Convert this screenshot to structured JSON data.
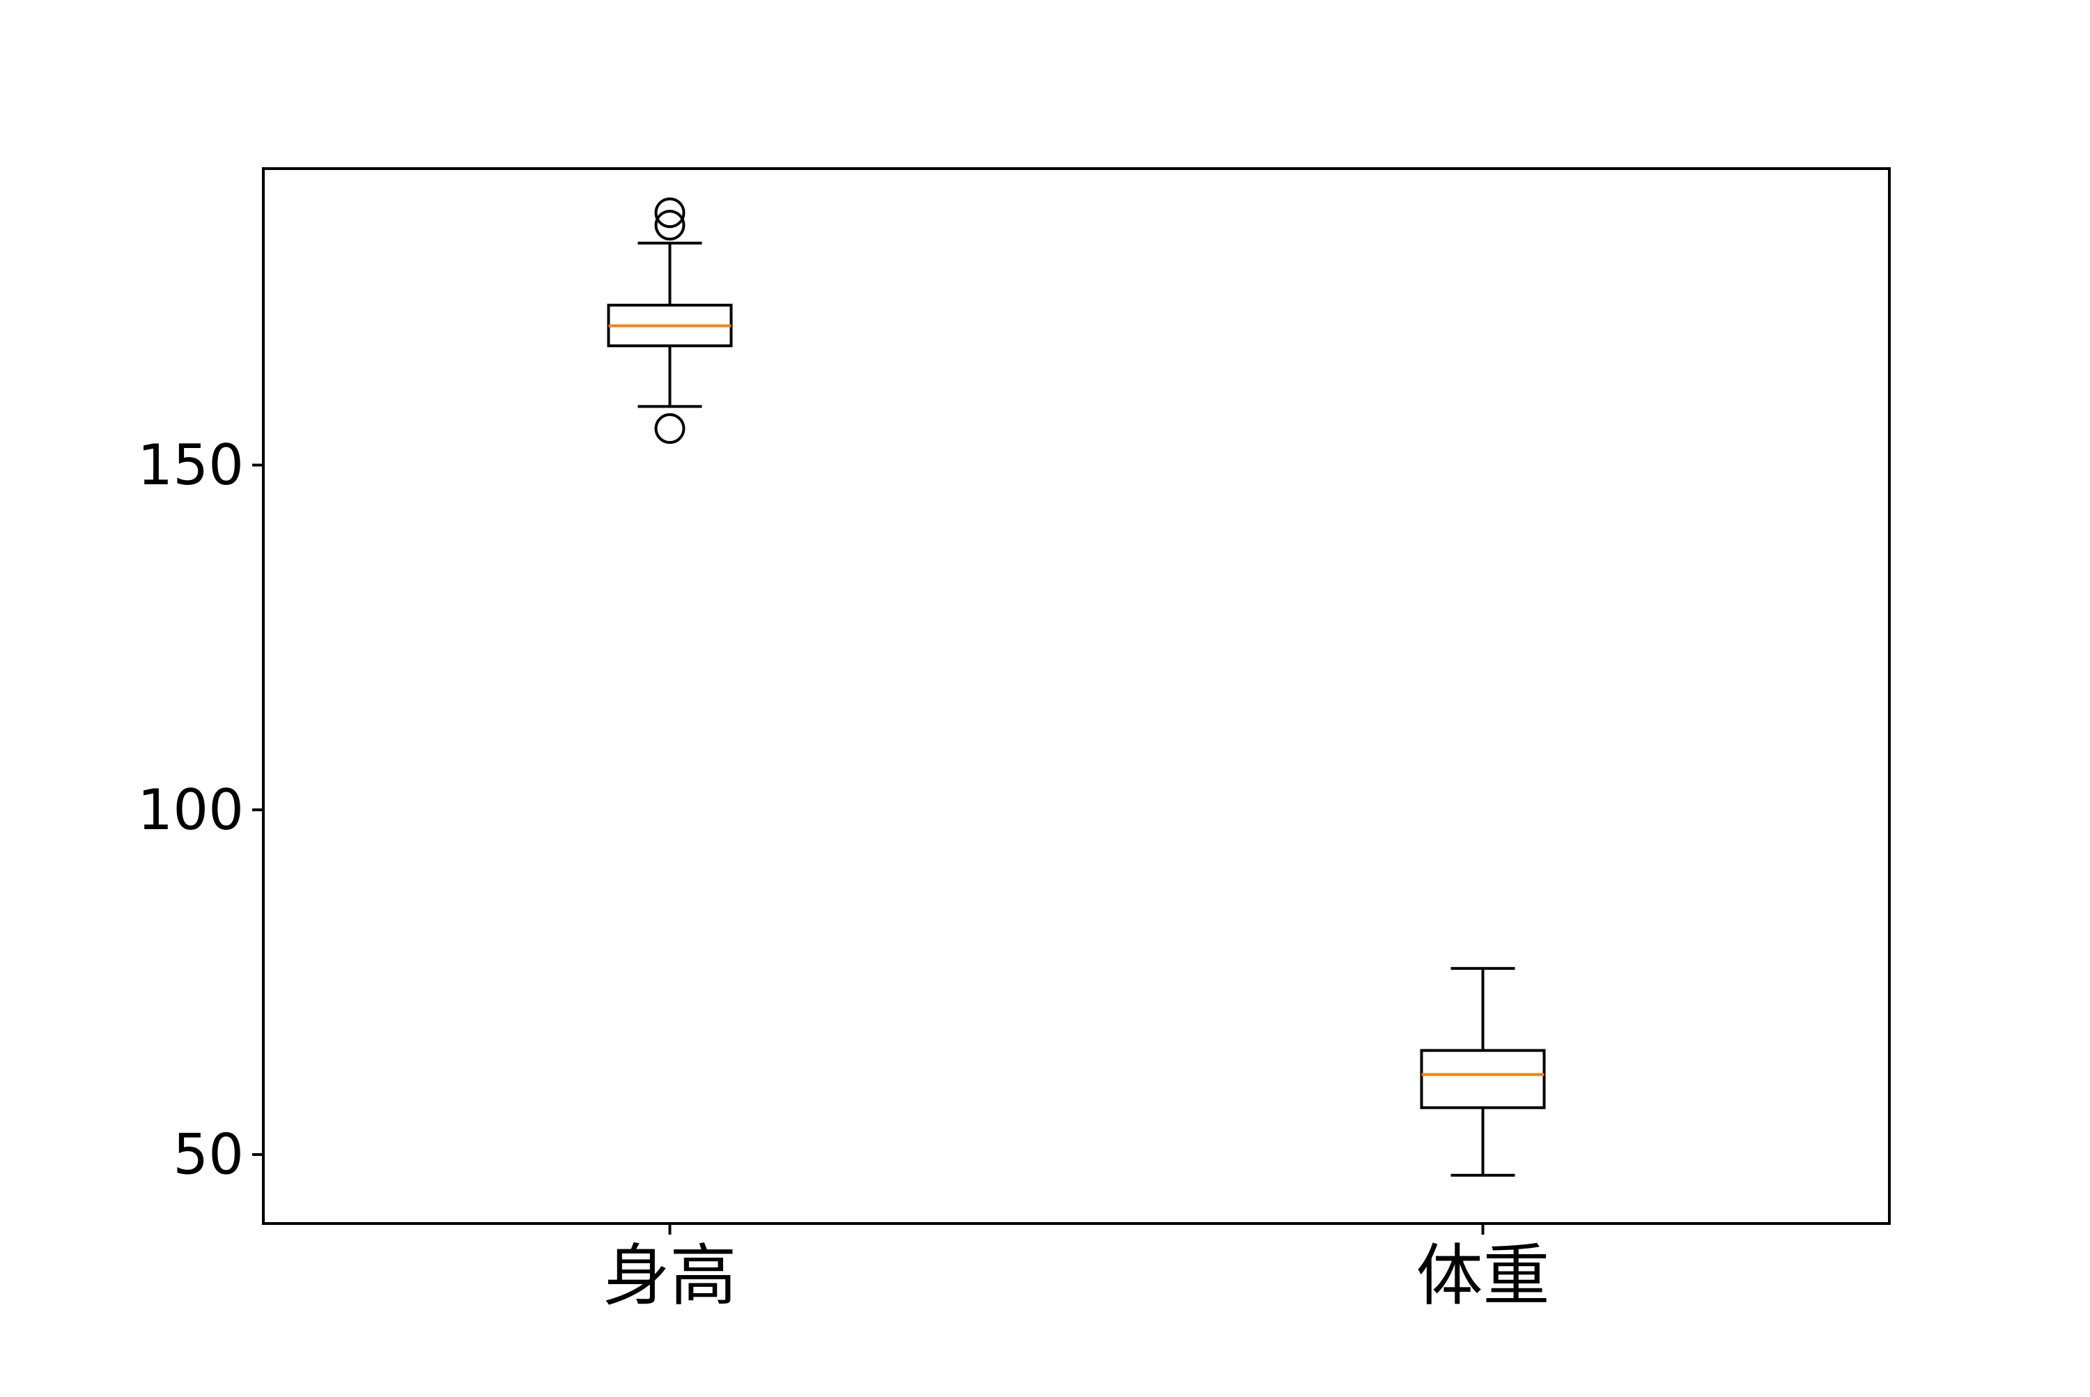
{
  "chart_data": {
    "type": "box",
    "title": "",
    "xlabel": "",
    "ylabel": "",
    "categories": [
      "身高",
      "体重"
    ],
    "ylim": [
      40,
      193
    ],
    "yticks": [
      50,
      100,
      150
    ],
    "grid": false,
    "boxes": [
      {
        "label": "身高",
        "whisker_low": 158.5,
        "q1": 167.3,
        "median": 170.2,
        "q3": 173.2,
        "whisker_high": 182.2,
        "outliers": [
          155.3,
          184.8,
          186.6
        ]
      },
      {
        "label": "体重",
        "whisker_low": 47.0,
        "q1": 56.8,
        "median": 61.6,
        "q3": 65.1,
        "whisker_high": 77.0,
        "outliers": []
      }
    ],
    "colors": {
      "box": "#000000",
      "median": "#ff7f0e",
      "axes": "#000000"
    }
  }
}
